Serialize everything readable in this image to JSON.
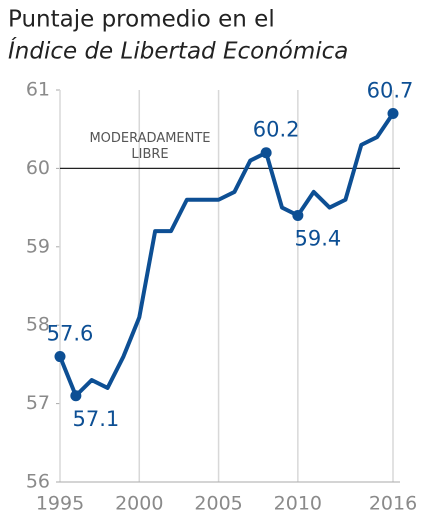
{
  "chart_data": {
    "type": "line",
    "title": "Puntaje promedio en el",
    "subtitle": "Índice de Libertad Económica",
    "x": [
      1995,
      1996,
      1997,
      1998,
      1999,
      2000,
      2001,
      2002,
      2003,
      2004,
      2005,
      2006,
      2007,
      2008,
      2009,
      2010,
      2011,
      2012,
      2013,
      2014,
      2015,
      2016
    ],
    "series": [
      {
        "name": "Puntaje",
        "color": "#0d4f94",
        "values": [
          57.6,
          57.1,
          57.3,
          57.2,
          57.6,
          58.1,
          59.2,
          59.2,
          59.6,
          59.6,
          59.6,
          59.7,
          60.1,
          60.2,
          59.5,
          59.4,
          59.7,
          59.5,
          59.6,
          60.3,
          60.4,
          60.7
        ],
        "value_labels": [
          "57.6",
          "57.1",
          null,
          null,
          null,
          null,
          null,
          null,
          null,
          null,
          null,
          null,
          null,
          "60.2",
          null,
          "59.4",
          null,
          null,
          null,
          null,
          null,
          "60.7"
        ]
      }
    ],
    "xlim": [
      1995,
      2016
    ],
    "xticks": [
      1995,
      2000,
      2005,
      2010,
      2016
    ],
    "ylim": [
      56,
      61
    ],
    "yticks": [
      56,
      57,
      58,
      59,
      60,
      61
    ],
    "grid": true,
    "reference_line": {
      "value": 60,
      "label": [
        "MODERADAMENTE",
        "LIBRE"
      ]
    }
  }
}
